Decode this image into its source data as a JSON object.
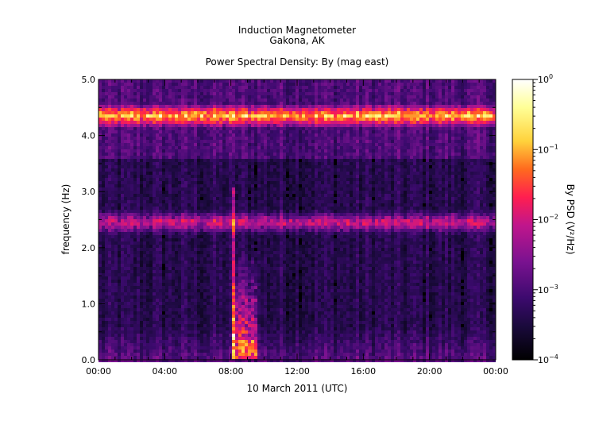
{
  "chart_data": {
    "type": "heatmap",
    "title": "Induction Magnetometer",
    "subtitle": "Gakona, AK",
    "plot_title": "Power Spectral Density: By (mag east)",
    "xlabel": "10 March 2011 (UTC)",
    "ylabel": "frequency (Hz)",
    "colorbar_label": "By PSD (V²/Hz)",
    "x_ticks": [
      "00:00",
      "04:00",
      "08:00",
      "12:00",
      "16:00",
      "20:00",
      "00:00"
    ],
    "x_range_hours": [
      0,
      24
    ],
    "y_ticks": [
      "0.0",
      "1.0",
      "2.0",
      "3.0",
      "4.0",
      "5.0"
    ],
    "ylim": [
      0,
      5
    ],
    "colorbar_ticks": [
      {
        "base": "10",
        "exp": "0"
      },
      {
        "base": "10",
        "exp": "−1"
      },
      {
        "base": "10",
        "exp": "−2"
      },
      {
        "base": "10",
        "exp": "−3"
      },
      {
        "base": "10",
        "exp": "−4"
      }
    ],
    "color_scale": "log",
    "color_range": [
      0.0001,
      1
    ],
    "colormap": [
      "#000000",
      "#1a0a3c",
      "#3c0a6e",
      "#7a1290",
      "#c0168c",
      "#ff1e50",
      "#ff6a1e",
      "#ffd23c",
      "#ffff96",
      "#ffffff"
    ],
    "features": [
      {
        "name": "band",
        "freq_hz": 4.35,
        "time_hours": [
          0,
          24
        ],
        "level": "high"
      },
      {
        "name": "band",
        "freq_hz": 2.45,
        "time_hours": [
          0,
          24
        ],
        "level": "medium"
      },
      {
        "name": "burst",
        "freq_hz": [
          0,
          2.0
        ],
        "time_hours": [
          8.0,
          9.6
        ],
        "level": "high"
      },
      {
        "name": "spike",
        "freq_hz": [
          0,
          3.1
        ],
        "time_hours": [
          8.1,
          8.3
        ],
        "level": "high"
      }
    ]
  }
}
